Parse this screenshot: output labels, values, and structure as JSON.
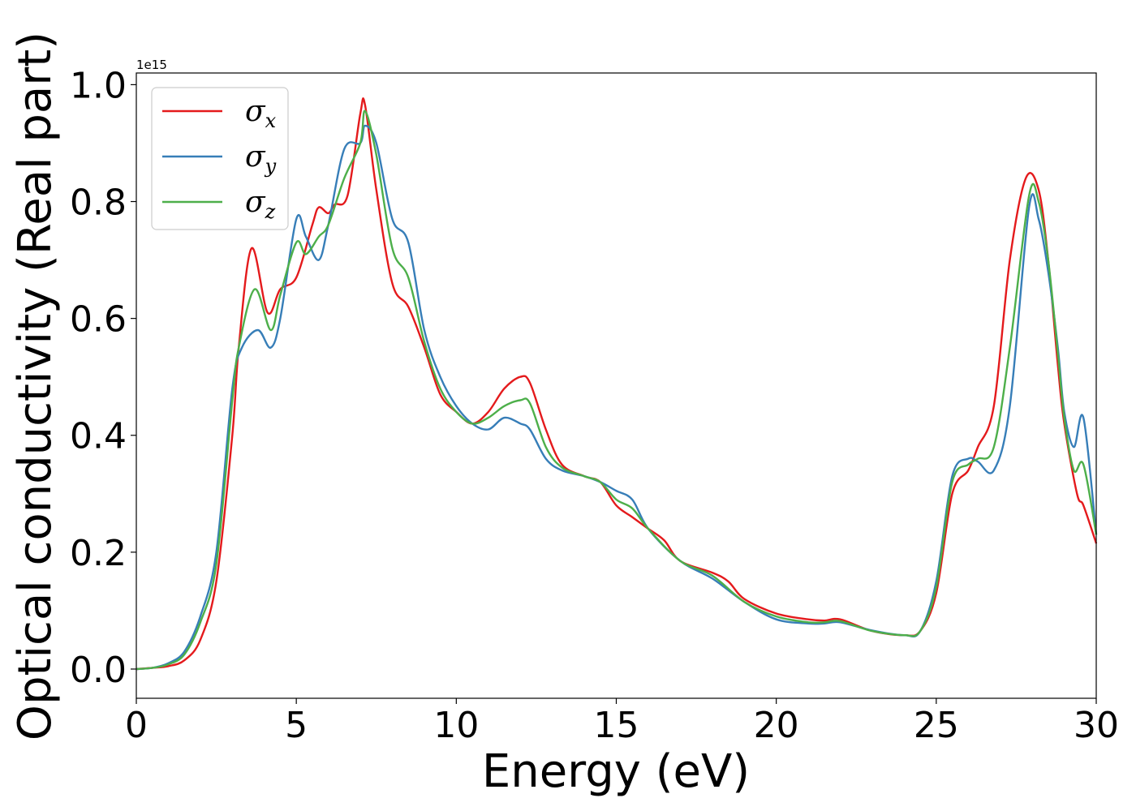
{
  "chart_data": {
    "type": "line",
    "title": "",
    "xlabel": "Energy (eV)",
    "ylabel": "Optical conductivity (Real part)",
    "y_offset_label": "1e15",
    "xlim": [
      0,
      30
    ],
    "ylim": [
      -0.05,
      1.02
    ],
    "xticks": [
      0,
      5,
      10,
      15,
      20,
      25,
      30
    ],
    "xtick_labels": [
      "0",
      "5",
      "10",
      "15",
      "20",
      "25",
      "30"
    ],
    "yticks": [
      0.0,
      0.2,
      0.4,
      0.6,
      0.8,
      1.0
    ],
    "ytick_labels": [
      "0.0",
      "0.2",
      "0.4",
      "0.6",
      "0.8",
      "1.0"
    ],
    "grid": false,
    "legend_position": "top-left",
    "series": [
      {
        "name": "σx",
        "legend_base": "σ",
        "legend_sub": "x",
        "color": "#e41a1c",
        "x": [
          0,
          0.5,
          1,
          1.5,
          2,
          2.5,
          3,
          3.2,
          3.6,
          4.1,
          4.5,
          5,
          5.5,
          5.7,
          6,
          6.2,
          6.6,
          7,
          7.15,
          7.5,
          8,
          8.5,
          9,
          9.5,
          10,
          10.5,
          11,
          11.5,
          12,
          12.3,
          12.8,
          13.3,
          14,
          14.5,
          15,
          15.5,
          16,
          16.5,
          17,
          18,
          18.5,
          19,
          20,
          21,
          21.5,
          22,
          23,
          24,
          24.5,
          25,
          25.5,
          26,
          26.3,
          26.8,
          27.3,
          27.8,
          28.2,
          28.5,
          28.8,
          29,
          29.4,
          29.6,
          30
        ],
        "y": [
          0.0,
          0.002,
          0.005,
          0.015,
          0.05,
          0.15,
          0.4,
          0.55,
          0.72,
          0.61,
          0.65,
          0.67,
          0.76,
          0.79,
          0.78,
          0.795,
          0.81,
          0.95,
          0.965,
          0.82,
          0.66,
          0.62,
          0.55,
          0.47,
          0.44,
          0.42,
          0.44,
          0.48,
          0.5,
          0.49,
          0.41,
          0.35,
          0.33,
          0.32,
          0.28,
          0.26,
          0.24,
          0.22,
          0.185,
          0.165,
          0.15,
          0.12,
          0.095,
          0.085,
          0.083,
          0.085,
          0.065,
          0.058,
          0.065,
          0.13,
          0.3,
          0.34,
          0.38,
          0.45,
          0.7,
          0.84,
          0.82,
          0.7,
          0.52,
          0.42,
          0.3,
          0.28,
          0.215
        ]
      },
      {
        "name": "σy",
        "legend_base": "σ",
        "legend_sub": "y",
        "color": "#377eb8",
        "x": [
          0,
          0.5,
          1,
          1.5,
          2,
          2.5,
          3,
          3.3,
          3.8,
          4.2,
          4.5,
          5,
          5.3,
          5.7,
          6,
          6.5,
          7,
          7.15,
          7.5,
          8,
          8.5,
          9,
          9.5,
          10,
          10.5,
          11,
          11.5,
          12,
          12.3,
          12.8,
          13.3,
          14,
          14.5,
          15,
          15.5,
          16,
          17,
          18,
          19,
          20,
          21,
          21.5,
          22,
          23,
          24,
          24.5,
          25,
          25.5,
          26,
          26.3,
          26.8,
          27.3,
          27.9,
          28.2,
          28.5,
          28.8,
          29,
          29.3,
          29.6,
          30
        ],
        "y": [
          0.0,
          0.002,
          0.01,
          0.03,
          0.09,
          0.2,
          0.48,
          0.55,
          0.58,
          0.55,
          0.6,
          0.77,
          0.74,
          0.7,
          0.76,
          0.89,
          0.9,
          0.93,
          0.9,
          0.77,
          0.73,
          0.58,
          0.5,
          0.45,
          0.42,
          0.41,
          0.43,
          0.42,
          0.41,
          0.36,
          0.34,
          0.33,
          0.32,
          0.305,
          0.29,
          0.24,
          0.185,
          0.155,
          0.115,
          0.085,
          0.078,
          0.078,
          0.08,
          0.066,
          0.058,
          0.065,
          0.15,
          0.33,
          0.36,
          0.355,
          0.34,
          0.45,
          0.79,
          0.77,
          0.68,
          0.55,
          0.44,
          0.38,
          0.43,
          0.23
        ]
      },
      {
        "name": "σz",
        "legend_base": "σ",
        "legend_sub": "z",
        "color": "#4daf4a",
        "x": [
          0,
          0.5,
          1,
          1.5,
          2,
          2.5,
          3,
          3.2,
          3.7,
          4.2,
          4.5,
          5,
          5.3,
          5.7,
          6,
          6.5,
          7,
          7.15,
          7.5,
          8,
          8.5,
          9,
          9.5,
          10,
          10.5,
          11,
          11.5,
          12,
          12.3,
          12.8,
          13.3,
          14,
          14.5,
          15,
          15.5,
          16,
          17,
          18,
          19,
          20,
          21,
          21.5,
          22,
          23,
          24,
          24.5,
          25,
          25.5,
          26,
          26.3,
          26.8,
          27.3,
          27.9,
          28.2,
          28.5,
          28.8,
          29,
          29.3,
          29.6,
          30
        ],
        "y": [
          0.0,
          0.002,
          0.008,
          0.025,
          0.08,
          0.18,
          0.46,
          0.55,
          0.65,
          0.58,
          0.64,
          0.73,
          0.71,
          0.74,
          0.76,
          0.84,
          0.9,
          0.955,
          0.88,
          0.72,
          0.67,
          0.56,
          0.48,
          0.44,
          0.42,
          0.43,
          0.45,
          0.46,
          0.455,
          0.38,
          0.345,
          0.33,
          0.32,
          0.29,
          0.275,
          0.24,
          0.185,
          0.16,
          0.115,
          0.09,
          0.08,
          0.08,
          0.082,
          0.065,
          0.058,
          0.065,
          0.14,
          0.32,
          0.35,
          0.36,
          0.38,
          0.55,
          0.81,
          0.8,
          0.7,
          0.54,
          0.43,
          0.34,
          0.35,
          0.23
        ]
      }
    ]
  }
}
